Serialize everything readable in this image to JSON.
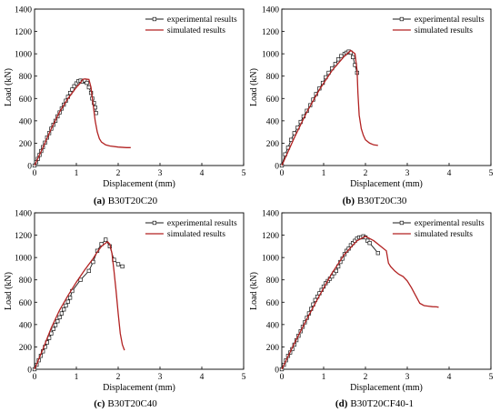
{
  "colors": {
    "experimental": "#1a1a1a",
    "simulated": "#b22222"
  },
  "chart_data": [
    {
      "type": "line",
      "caption_tag": "(a)",
      "caption_name": "B30T20C20",
      "xlabel": "Displacement (mm)",
      "ylabel": "Load (kN)",
      "xlim": [
        0,
        5
      ],
      "ylim": [
        0,
        1400
      ],
      "xticks": [
        0,
        1,
        2,
        3,
        4,
        5
      ],
      "yticks": [
        0,
        200,
        400,
        600,
        800,
        1000,
        1200,
        1400
      ],
      "legend_position": "top-right",
      "grid": false,
      "series": [
        {
          "name": "experimental results",
          "marker": "square",
          "x": [
            0.0,
            0.04,
            0.08,
            0.12,
            0.16,
            0.2,
            0.25,
            0.3,
            0.35,
            0.4,
            0.45,
            0.5,
            0.55,
            0.6,
            0.65,
            0.7,
            0.75,
            0.8,
            0.85,
            0.9,
            0.95,
            1.0,
            1.05,
            1.1,
            1.15,
            1.2,
            1.25,
            1.3,
            1.35,
            1.38,
            1.42,
            1.45,
            1.47
          ],
          "y": [
            0,
            30,
            60,
            95,
            130,
            165,
            205,
            250,
            290,
            330,
            365,
            400,
            440,
            475,
            510,
            545,
            580,
            615,
            650,
            680,
            710,
            735,
            755,
            760,
            750,
            760,
            740,
            700,
            650,
            600,
            560,
            520,
            470
          ]
        },
        {
          "name": "simulated results",
          "marker": "none",
          "x": [
            0.0,
            0.2,
            0.4,
            0.6,
            0.8,
            1.0,
            1.1,
            1.15,
            1.2,
            1.3,
            1.35,
            1.4,
            1.45,
            1.5,
            1.55,
            1.6,
            1.7,
            1.8,
            2.0,
            2.2,
            2.3
          ],
          "y": [
            0,
            160,
            330,
            480,
            600,
            700,
            740,
            770,
            775,
            770,
            700,
            550,
            400,
            300,
            240,
            210,
            185,
            175,
            165,
            160,
            160
          ]
        }
      ]
    },
    {
      "type": "line",
      "caption_tag": "(b)",
      "caption_name": "B30T20C30",
      "xlabel": "Displacement (mm)",
      "ylabel": "Load (kN)",
      "xlim": [
        0,
        5
      ],
      "ylim": [
        0,
        1400
      ],
      "xticks": [
        0,
        1,
        2,
        3,
        4,
        5
      ],
      "yticks": [
        0,
        200,
        400,
        600,
        800,
        1000,
        1200,
        1400
      ],
      "legend_position": "top-right",
      "grid": false,
      "series": [
        {
          "name": "experimental results",
          "marker": "square",
          "x": [
            0.0,
            0.08,
            0.15,
            0.22,
            0.3,
            0.38,
            0.45,
            0.52,
            0.6,
            0.68,
            0.75,
            0.82,
            0.9,
            0.98,
            1.05,
            1.12,
            1.2,
            1.28,
            1.35,
            1.42,
            1.5,
            1.55,
            1.6,
            1.65,
            1.7,
            1.75,
            1.8
          ],
          "y": [
            0,
            100,
            160,
            230,
            290,
            340,
            390,
            440,
            490,
            540,
            590,
            640,
            690,
            740,
            790,
            830,
            870,
            910,
            950,
            980,
            1000,
            1010,
            1020,
            1010,
            970,
            900,
            830
          ]
        },
        {
          "name": "simulated results",
          "marker": "none",
          "x": [
            0.0,
            0.3,
            0.6,
            0.9,
            1.2,
            1.5,
            1.65,
            1.75,
            1.8,
            1.82,
            1.85,
            1.9,
            1.95,
            2.0,
            2.1,
            2.2,
            2.3
          ],
          "y": [
            0,
            250,
            480,
            680,
            850,
            980,
            1030,
            1000,
            850,
            650,
            450,
            330,
            270,
            230,
            200,
            185,
            180
          ]
        }
      ]
    },
    {
      "type": "line",
      "caption_tag": "(c)",
      "caption_name": "B30T20C40",
      "xlabel": "Displacement (mm)",
      "ylabel": "Load (kN)",
      "xlim": [
        0,
        5
      ],
      "ylim": [
        0,
        1400
      ],
      "xticks": [
        0,
        1,
        2,
        3,
        4,
        5
      ],
      "yticks": [
        0,
        200,
        400,
        600,
        800,
        1000,
        1200,
        1400
      ],
      "legend_position": "top-right",
      "grid": false,
      "series": [
        {
          "name": "experimental results",
          "marker": "square",
          "x": [
            0.0,
            0.05,
            0.1,
            0.15,
            0.2,
            0.25,
            0.3,
            0.35,
            0.4,
            0.45,
            0.5,
            0.55,
            0.6,
            0.65,
            0.7,
            0.75,
            0.8,
            0.85,
            0.9,
            1.1,
            1.3,
            1.4,
            1.5,
            1.6,
            1.7,
            1.8,
            1.9,
            2.0,
            2.1
          ],
          "y": [
            0,
            40,
            80,
            120,
            160,
            200,
            240,
            280,
            320,
            360,
            395,
            430,
            465,
            500,
            535,
            570,
            605,
            640,
            700,
            800,
            880,
            960,
            1060,
            1120,
            1160,
            1100,
            980,
            940,
            920
          ]
        },
        {
          "name": "simulated results",
          "marker": "none",
          "x": [
            0.0,
            0.2,
            0.4,
            0.6,
            0.8,
            1.0,
            1.2,
            1.4,
            1.5,
            1.6,
            1.7,
            1.75,
            1.8,
            1.85,
            1.9,
            1.95,
            2.0,
            2.05,
            2.1,
            2.15
          ],
          "y": [
            0,
            180,
            370,
            530,
            660,
            780,
            890,
            990,
            1050,
            1100,
            1130,
            1140,
            1120,
            1040,
            880,
            700,
            500,
            320,
            220,
            170
          ]
        }
      ]
    },
    {
      "type": "line",
      "caption_tag": "(d)",
      "caption_name": "B30T20CF40-1",
      "xlabel": "Displacement (mm)",
      "ylabel": "Load (kN)",
      "xlim": [
        0,
        5
      ],
      "ylim": [
        0,
        1400
      ],
      "xticks": [
        0,
        1,
        2,
        3,
        4,
        5
      ],
      "yticks": [
        0,
        200,
        400,
        600,
        800,
        1000,
        1200,
        1400
      ],
      "legend_position": "top-right",
      "grid": false,
      "series": [
        {
          "name": "experimental results",
          "marker": "square",
          "x": [
            0.0,
            0.05,
            0.1,
            0.15,
            0.2,
            0.25,
            0.3,
            0.35,
            0.4,
            0.45,
            0.5,
            0.55,
            0.6,
            0.65,
            0.7,
            0.75,
            0.8,
            0.85,
            0.9,
            0.95,
            1.0,
            1.05,
            1.1,
            1.15,
            1.2,
            1.25,
            1.3,
            1.35,
            1.4,
            1.45,
            1.5,
            1.55,
            1.6,
            1.65,
            1.7,
            1.75,
            1.8,
            1.85,
            1.9,
            1.95,
            2.0,
            2.05,
            2.1,
            2.3
          ],
          "y": [
            0,
            40,
            80,
            120,
            150,
            180,
            220,
            260,
            300,
            340,
            380,
            420,
            460,
            500,
            540,
            580,
            620,
            650,
            680,
            710,
            740,
            770,
            790,
            810,
            830,
            860,
            880,
            920,
            960,
            990,
            1030,
            1060,
            1080,
            1110,
            1130,
            1150,
            1170,
            1180,
            1180,
            1190,
            1180,
            1150,
            1130,
            1040
          ]
        },
        {
          "name": "simulated results",
          "marker": "none",
          "x": [
            0.0,
            0.3,
            0.6,
            0.9,
            1.2,
            1.5,
            1.8,
            2.0,
            2.2,
            2.4,
            2.5,
            2.55,
            2.6,
            2.7,
            2.8,
            2.9,
            3.0,
            3.1,
            3.2,
            3.3,
            3.4,
            3.5,
            3.6,
            3.7,
            3.75
          ],
          "y": [
            0,
            230,
            450,
            660,
            860,
            1030,
            1150,
            1190,
            1150,
            1090,
            1060,
            950,
            920,
            880,
            850,
            830,
            790,
            730,
            660,
            590,
            570,
            565,
            560,
            558,
            555
          ]
        }
      ]
    }
  ]
}
